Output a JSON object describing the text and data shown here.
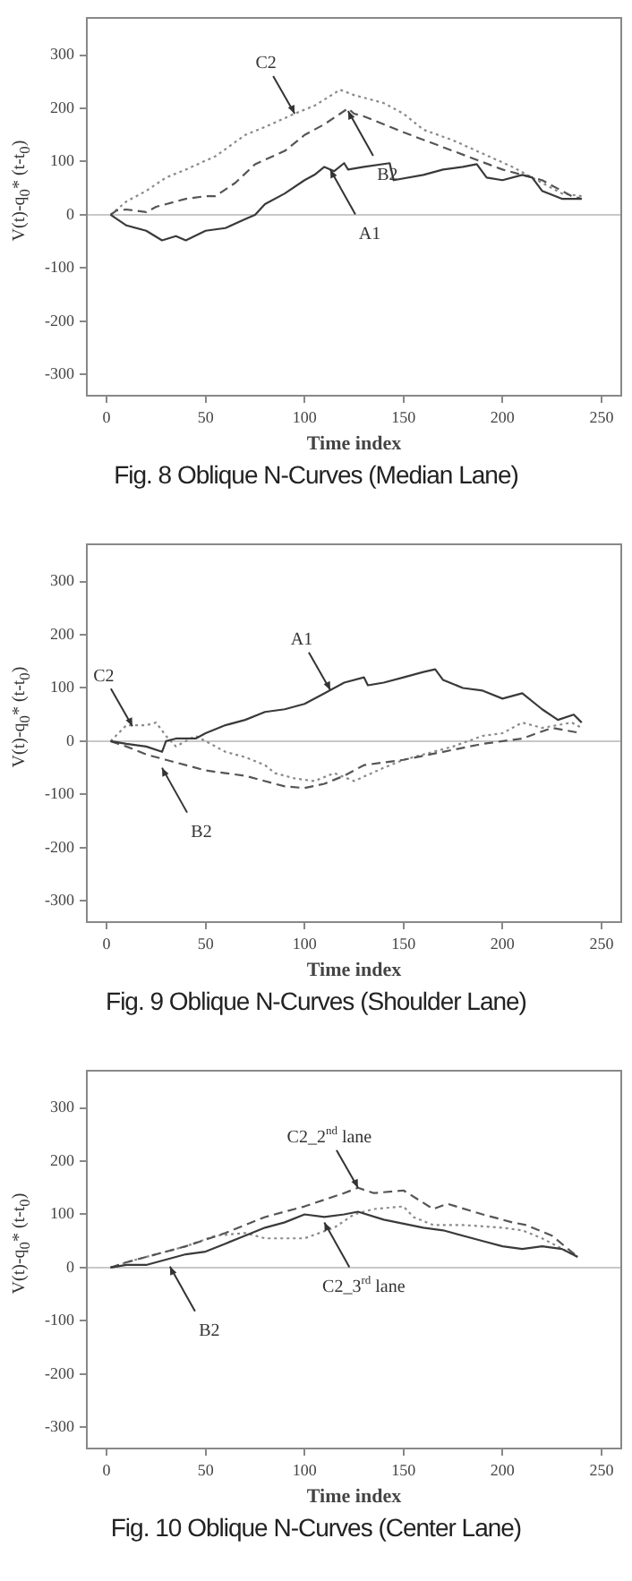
{
  "chart_data": [
    {
      "type": "line",
      "xlabel": "Time index",
      "ylabel": "V(t)-q$_{0}$* (t-t$_{0}$)",
      "xlim": [
        -10,
        260
      ],
      "xticks": [
        0,
        50,
        100,
        150,
        200,
        250
      ],
      "ylim": [
        -340,
        370
      ],
      "yticks": [
        -300,
        -200,
        -100,
        0,
        100,
        200,
        300
      ],
      "grid": false,
      "legend": false,
      "marker": "none",
      "ref_lines": [
        {
          "axis": "y",
          "value": 0,
          "color": "#c8c8c8"
        }
      ],
      "annotations": [
        {
          "text": "C2",
          "x": 95,
          "y": 190
        },
        {
          "text": "B2",
          "x": 122,
          "y": 195
        },
        {
          "text": "A1",
          "x": 113,
          "y": 85
        },
        "Fig. 8 Oblique N-Curves (Median Lane)"
      ],
      "series": [
        {
          "color": "#3a3a3a",
          "line_style": "solid",
          "x": [
            2,
            10,
            20,
            28,
            35,
            40,
            50,
            60,
            70,
            75,
            80,
            90,
            100,
            105,
            110,
            115,
            120,
            122,
            130,
            143,
            145,
            160,
            170,
            180,
            187,
            192,
            200,
            210,
            215,
            220,
            230,
            240
          ],
          "values": [
            0,
            -20,
            -30,
            -48,
            -40,
            -48,
            -30,
            -25,
            -8,
            0,
            20,
            40,
            65,
            75,
            90,
            82,
            97,
            85,
            90,
            97,
            65,
            75,
            85,
            90,
            95,
            70,
            65,
            75,
            70,
            45,
            30,
            30
          ]
        },
        {
          "color": "#555555",
          "line_style": "dashed",
          "x": [
            2,
            5,
            10,
            20,
            25,
            40,
            50,
            55,
            65,
            75,
            90,
            100,
            110,
            118,
            122,
            125,
            130,
            150,
            175,
            200,
            220,
            235,
            240
          ],
          "values": [
            0,
            8,
            10,
            5,
            15,
            30,
            35,
            35,
            60,
            95,
            120,
            150,
            170,
            190,
            200,
            190,
            185,
            155,
            120,
            85,
            65,
            35,
            30
          ]
        },
        {
          "color": "#8a8a8a",
          "line_style": "dotted",
          "x": [
            2,
            10,
            20,
            30,
            40,
            55,
            70,
            80,
            95,
            105,
            118,
            125,
            140,
            150,
            160,
            175,
            190,
            205,
            215,
            230,
            240
          ],
          "values": [
            0,
            25,
            45,
            70,
            85,
            110,
            150,
            165,
            190,
            205,
            235,
            225,
            210,
            190,
            160,
            140,
            115,
            90,
            70,
            40,
            35
          ]
        }
      ]
    },
    {
      "type": "line",
      "xlabel": "Time index",
      "ylabel": "V(t)-q$_{0}$* (t-t$_{0}$)",
      "xlim": [
        -10,
        260
      ],
      "xticks": [
        0,
        50,
        100,
        150,
        200,
        250
      ],
      "ylim": [
        -340,
        370
      ],
      "yticks": [
        -300,
        -200,
        -100,
        0,
        100,
        200,
        300
      ],
      "grid": false,
      "legend": false,
      "marker": "none",
      "ref_lines": [
        {
          "axis": "y",
          "value": 0,
          "color": "#c8c8c8"
        }
      ],
      "annotations": [
        {
          "text": "C2",
          "x": 13,
          "y": 28
        },
        {
          "text": "B2",
          "x": 28,
          "y": -50
        },
        {
          "text": "A1",
          "x": 113,
          "y": 96
        },
        "Fig. 9 Oblique N-Curves (Shoulder Lane)"
      ],
      "series": [
        {
          "color": "#3a3a3a",
          "line_style": "solid",
          "x": [
            2,
            10,
            20,
            28,
            30,
            35,
            45,
            50,
            60,
            70,
            80,
            90,
            100,
            110,
            120,
            130,
            132,
            140,
            150,
            160,
            166,
            170,
            180,
            190,
            200,
            210,
            220,
            228,
            236,
            240
          ],
          "values": [
            0,
            -5,
            -10,
            -20,
            0,
            5,
            5,
            15,
            30,
            40,
            55,
            60,
            70,
            90,
            110,
            120,
            105,
            110,
            120,
            130,
            135,
            115,
            100,
            95,
            80,
            90,
            60,
            40,
            50,
            35
          ]
        },
        {
          "color": "#555555",
          "line_style": "dashed",
          "x": [
            2,
            10,
            20,
            30,
            40,
            50,
            60,
            70,
            80,
            90,
            100,
            110,
            120,
            130,
            150,
            170,
            190,
            200,
            210,
            225,
            240
          ],
          "values": [
            0,
            -10,
            -25,
            -35,
            -45,
            -55,
            -60,
            -65,
            -75,
            -85,
            -88,
            -80,
            -65,
            -45,
            -35,
            -20,
            -5,
            0,
            5,
            25,
            15
          ]
        },
        {
          "color": "#8a8a8a",
          "line_style": "dotted",
          "x": [
            2,
            10,
            20,
            25,
            30,
            35,
            45,
            60,
            70,
            80,
            85,
            95,
            105,
            115,
            125,
            140,
            150,
            160,
            175,
            190,
            200,
            210,
            220,
            235,
            240
          ],
          "values": [
            0,
            30,
            30,
            35,
            10,
            -10,
            10,
            -20,
            -30,
            -45,
            -60,
            -70,
            -75,
            -60,
            -75,
            -50,
            -35,
            -25,
            -10,
            10,
            15,
            35,
            25,
            35,
            25
          ]
        }
      ]
    },
    {
      "type": "line",
      "xlabel": "Time index",
      "ylabel": "V(t)-q$_{0}$* (t-t$_{0}$)",
      "xlim": [
        -10,
        260
      ],
      "xticks": [
        0,
        50,
        100,
        150,
        200,
        250
      ],
      "ylim": [
        -340,
        370
      ],
      "yticks": [
        -300,
        -200,
        -100,
        0,
        100,
        200,
        300
      ],
      "grid": false,
      "legend": false,
      "marker": "none",
      "ref_lines": [
        {
          "axis": "y",
          "value": 0,
          "color": "#c8c8c8"
        }
      ],
      "annotations": [
        {
          "text": "C2_2$^{nd}$ lane",
          "x": 127,
          "y": 150
        },
        {
          "text": "C2_3$^{rd}$ lane",
          "x": 110,
          "y": 85
        },
        {
          "text": "B2",
          "x": 32,
          "y": 2
        },
        "Fig. 10 Oblique N-Curves (Center Lane)"
      ],
      "series": [
        {
          "color": "#3a3a3a",
          "line_style": "solid",
          "x": [
            2,
            10,
            20,
            30,
            40,
            50,
            60,
            70,
            80,
            90,
            100,
            110,
            120,
            127,
            140,
            160,
            170,
            190,
            200,
            210,
            220,
            230,
            238
          ],
          "values": [
            0,
            5,
            5,
            15,
            25,
            30,
            45,
            60,
            75,
            85,
            100,
            95,
            100,
            105,
            90,
            75,
            70,
            50,
            40,
            35,
            40,
            35,
            20
          ]
        },
        {
          "color": "#555555",
          "line_style": "dashed",
          "x": [
            2,
            10,
            20,
            40,
            60,
            80,
            100,
            120,
            127,
            135,
            150,
            165,
            172,
            190,
            205,
            212,
            225,
            238
          ],
          "values": [
            0,
            10,
            20,
            40,
            65,
            95,
            115,
            140,
            150,
            140,
            145,
            110,
            120,
            100,
            85,
            80,
            60,
            20
          ]
        },
        {
          "color": "#8a8a8a",
          "line_style": "dotted",
          "x": [
            2,
            10,
            20,
            40,
            55,
            70,
            80,
            100,
            115,
            125,
            135,
            150,
            155,
            165,
            180,
            200,
            210,
            220,
            238
          ],
          "values": [
            0,
            10,
            20,
            40,
            60,
            65,
            55,
            55,
            75,
            100,
            110,
            115,
            95,
            80,
            80,
            75,
            70,
            55,
            20
          ]
        }
      ]
    }
  ]
}
